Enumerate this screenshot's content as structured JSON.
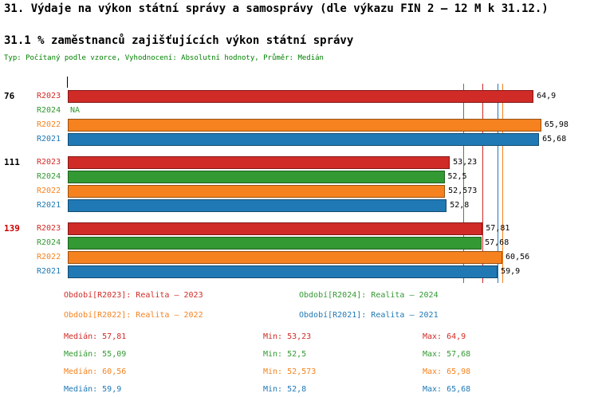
{
  "title": "31. Výdaje na výkon státní správy a samosprávy (dle výkazu FIN 2 – 12 M k 31.12.)",
  "subtitle": "31.1 % zaměstnanců zajišťujících výkon státní správy",
  "meta": "Typ: Počítaný podle vzorce, Vyhodnocení: Absolutní hodnoty, Průměr: Medián",
  "colors": {
    "R2023": "#d02b27",
    "R2024": "#339933",
    "R2022": "#f5821f",
    "R2021": "#2079b4",
    "meta_text": "#008000",
    "value_label": "#000000"
  },
  "chart_data": {
    "type": "bar",
    "orientation": "horizontal",
    "xlim": [
      0,
      73
    ],
    "grid": false,
    "series_order": [
      "R2023",
      "R2024",
      "R2022",
      "R2021"
    ],
    "groups": [
      {
        "label": "76",
        "label_color": "#000000",
        "bars": [
          {
            "series": "R2023",
            "value": 64.9,
            "display": "64,9"
          },
          {
            "series": "R2024",
            "value": null,
            "display": "NA"
          },
          {
            "series": "R2022",
            "value": 65.98,
            "display": "65,98"
          },
          {
            "series": "R2021",
            "value": 65.68,
            "display": "65,68"
          }
        ]
      },
      {
        "label": "111",
        "label_color": "#000000",
        "bars": [
          {
            "series": "R2023",
            "value": 53.23,
            "display": "53,23"
          },
          {
            "series": "R2024",
            "value": 52.5,
            "display": "52,5"
          },
          {
            "series": "R2022",
            "value": 52.573,
            "display": "52,573"
          },
          {
            "series": "R2021",
            "value": 52.8,
            "display": "52,8"
          }
        ]
      },
      {
        "label": "139",
        "label_color": "#cc0000",
        "bars": [
          {
            "series": "R2023",
            "value": 57.81,
            "display": "57,81"
          },
          {
            "series": "R2024",
            "value": 57.68,
            "display": "57,68"
          },
          {
            "series": "R2022",
            "value": 60.56,
            "display": "60,56"
          },
          {
            "series": "R2021",
            "value": 59.9,
            "display": "59,9"
          }
        ]
      }
    ],
    "median_lines": [
      {
        "series": "R2023",
        "value": 57.81
      },
      {
        "series": "R2024",
        "value": 55.09
      },
      {
        "series": "R2022",
        "value": 60.56
      },
      {
        "series": "R2021",
        "value": 59.9
      }
    ]
  },
  "legend": [
    {
      "series": "R2023",
      "label": "Období[R2023]: Realita – 2023"
    },
    {
      "series": "R2024",
      "label": "Období[R2024]: Realita – 2024"
    },
    {
      "series": "R2022",
      "label": "Období[R2022]: Realita – 2022"
    },
    {
      "series": "R2021",
      "label": "Období[R2021]: Realita – 2021"
    }
  ],
  "stats": [
    {
      "series": "R2023",
      "median": "Medián: 57,81",
      "min": "Min: 53,23",
      "max": "Max: 64,9"
    },
    {
      "series": "R2024",
      "median": "Medián: 55,09",
      "min": "Min: 52,5",
      "max": "Max: 57,68"
    },
    {
      "series": "R2022",
      "median": "Medián: 60,56",
      "min": "Min: 52,573",
      "max": "Max: 65,98"
    },
    {
      "series": "R2021",
      "median": "Medián: 59,9",
      "min": "Min: 52,8",
      "max": "Max: 65,68"
    }
  ]
}
